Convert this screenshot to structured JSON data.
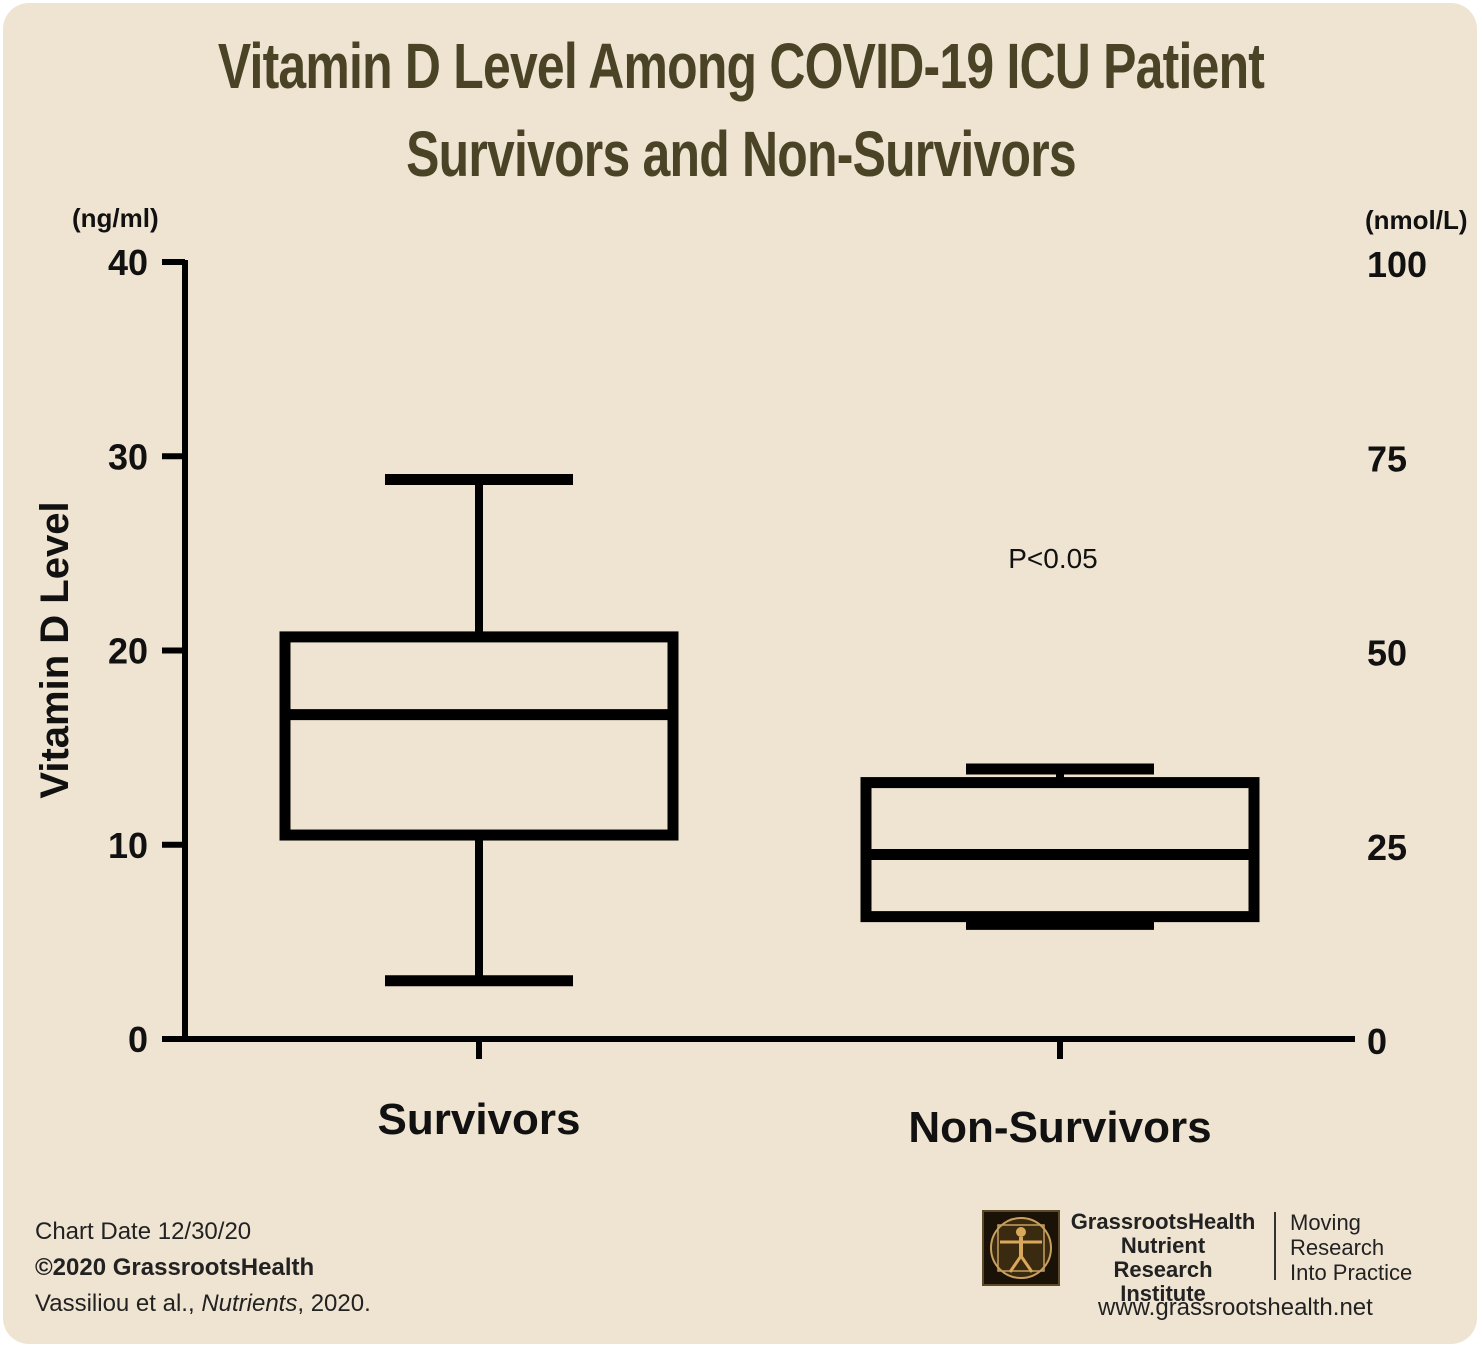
{
  "chart_data": {
    "type": "box",
    "title": "Vitamin D Level Among COVID-19 ICU Patient Survivors and Non-Survivors",
    "title_lines": [
      "Vitamin D Level Among COVID-19 ICU Patient",
      "Survivors and Non-Survivors"
    ],
    "ylabel": "Vitamin D Level",
    "y_unit_left": "(ng/ml)",
    "y_unit_right": "(nmol/L)",
    "ylim": [
      0,
      40
    ],
    "y_ticks_left": [
      "0",
      "10",
      "20",
      "30",
      "40"
    ],
    "y_ticks_right": [
      "0",
      "25",
      "50",
      "75",
      "100"
    ],
    "categories": [
      "Survivors",
      "Non-Survivors"
    ],
    "boxes": [
      {
        "category": "Survivors",
        "min": 3,
        "q1": 10.5,
        "median": 16.7,
        "q3": 20.7,
        "max": 28.8
      },
      {
        "category": "Non-Survivors",
        "min": 5.9,
        "q1": 6.3,
        "median": 9.5,
        "q3": 13.2,
        "max": 13.9
      }
    ],
    "annotation": "P<0.05",
    "grid": false,
    "colors": {
      "box": "#000000",
      "background": "#efe4d2",
      "title": "#4a4326"
    }
  },
  "footer": {
    "chart_date": "Chart Date 12/30/20",
    "copyright": "©2020 GrassrootsHealth",
    "citation_authors": "Vassiliou et al., ",
    "citation_journal": "Nutrients",
    "citation_year": ", 2020.",
    "org_name_lines": [
      "GrassrootsHealth",
      "Nutrient",
      "Research Institute"
    ],
    "tagline_lines": [
      "Moving",
      "Research",
      "Into Practice"
    ],
    "website": "www.grassrootshealth.net",
    "logo_icon": "vitruvian-man-icon"
  }
}
